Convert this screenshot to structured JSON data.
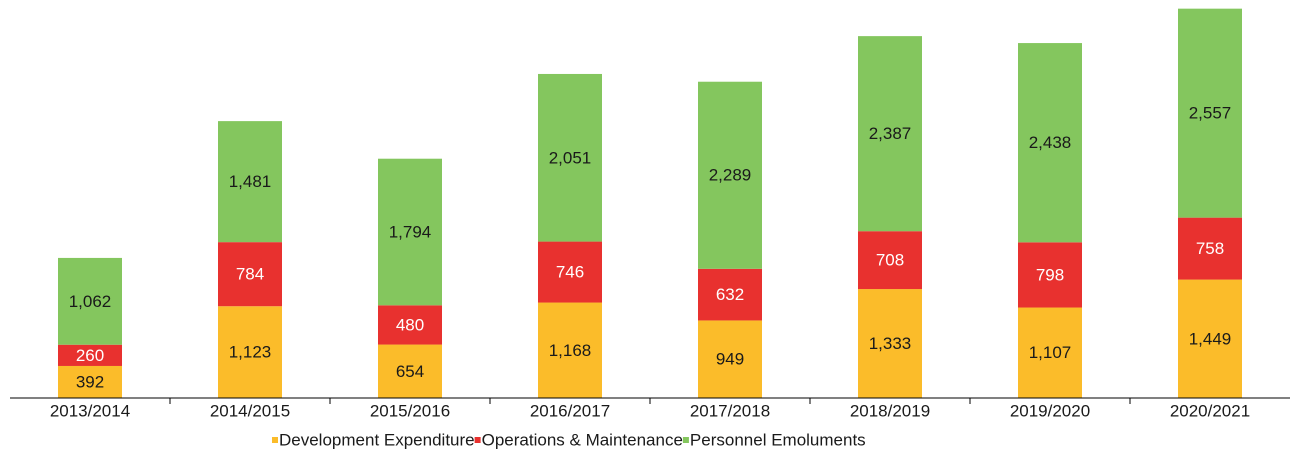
{
  "chart_data": {
    "type": "stacked_bar",
    "categories": [
      "2013/2014",
      "2014/2015",
      "2015/2016",
      "2016/2017",
      "2017/2018",
      "2018/2019",
      "2019/2020",
      "2020/2021"
    ],
    "series": [
      {
        "name": "Development Expenditure",
        "color": "#fbbc2a",
        "values": [
          392,
          1123,
          654,
          1168,
          949,
          1333,
          1107,
          1449
        ],
        "value_labels": [
          "392",
          "1,123",
          "654",
          "1,168",
          "949",
          "1,333",
          "1,107",
          "1,449"
        ]
      },
      {
        "name": "Operations & Maintenance",
        "color": "#e8312f",
        "values": [
          260,
          784,
          480,
          746,
          632,
          708,
          798,
          758
        ],
        "value_labels": [
          "260",
          "784",
          "480",
          "746",
          "632",
          "708",
          "798",
          "758"
        ]
      },
      {
        "name": "Personnel Emoluments",
        "color": "#84c65e",
        "values": [
          1062,
          1481,
          1794,
          2051,
          2289,
          2387,
          2438,
          2557
        ],
        "value_labels": [
          "1,062",
          "1,481",
          "1,794",
          "2,051",
          "2,289",
          "2,387",
          "2,438",
          "2,557"
        ]
      }
    ],
    "ylim": [
      0,
      4870
    ]
  }
}
